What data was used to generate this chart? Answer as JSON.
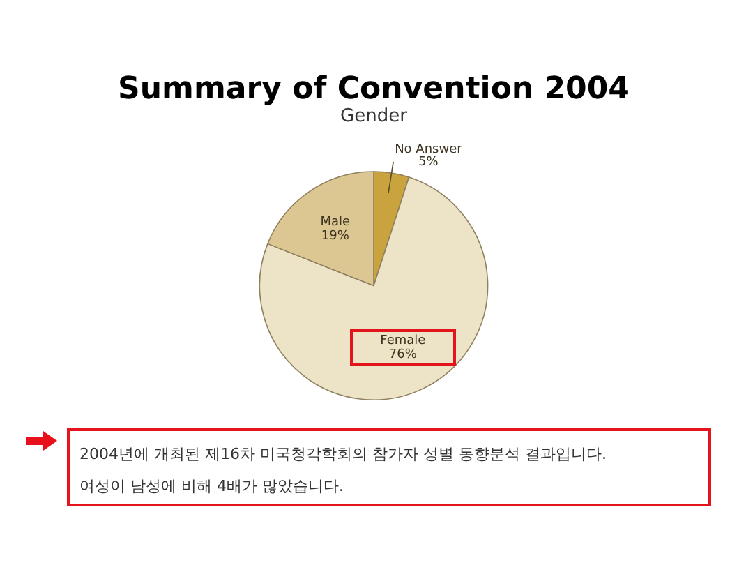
{
  "chart_data": {
    "type": "pie",
    "title": "Summary of Convention 2004",
    "subtitle": "Gender",
    "categories": [
      "No Answer",
      "Female",
      "Male"
    ],
    "values": [
      5,
      76,
      19
    ],
    "colors": [
      "#c9a43e",
      "#ede3c7",
      "#dcc793"
    ],
    "value_labels": [
      "5%",
      "76%",
      "19%"
    ],
    "legend": false,
    "annotations": [
      "2004년에 개최된 제16차 미국청각학회의 참가자 성별 동향분석 결과입니다.",
      "여성이 남성에 비해 4배가 많았습니다."
    ]
  }
}
